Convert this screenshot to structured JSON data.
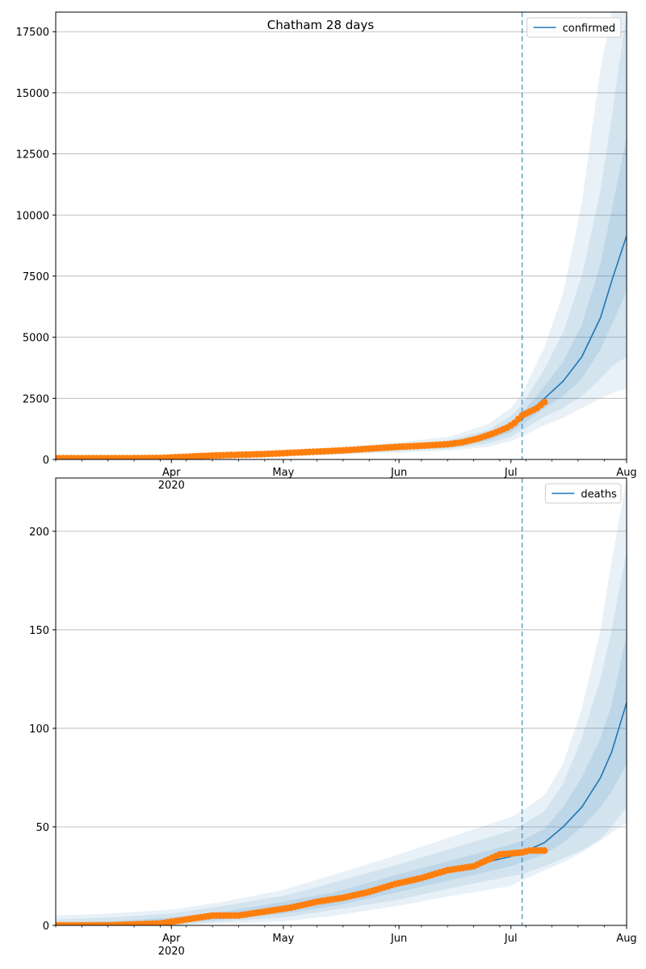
{
  "figure": {
    "title": "Chatham 28 days"
  },
  "chart_data": [
    {
      "type": "line",
      "name": "confirmed",
      "legend": {
        "label": "confirmed",
        "placement": "top-right"
      },
      "grid": {
        "y": true,
        "x": false
      },
      "xlim": [
        "2020-03-01",
        "2020-08-01"
      ],
      "ylim": [
        0,
        18300
      ],
      "y_ticks": [
        0,
        2500,
        5000,
        7500,
        10000,
        12500,
        15000,
        17500
      ],
      "x_ticks": [
        {
          "date": "2020-04-01",
          "label": "Apr",
          "sublabel": "2020"
        },
        {
          "date": "2020-05-01",
          "label": "May",
          "sublabel": ""
        },
        {
          "date": "2020-06-01",
          "label": "Jun",
          "sublabel": ""
        },
        {
          "date": "2020-07-01",
          "label": "Jul",
          "sublabel": ""
        },
        {
          "date": "2020-08-01",
          "label": "Aug",
          "sublabel": ""
        }
      ],
      "forecast_start": "2020-07-04",
      "series_color": "#1f77b4",
      "observed_color": "#ff7f0e",
      "model": {
        "dates": [
          "2020-03-01",
          "2020-03-15",
          "2020-04-01",
          "2020-04-15",
          "2020-05-01",
          "2020-05-15",
          "2020-06-01",
          "2020-06-15",
          "2020-06-25",
          "2020-07-01",
          "2020-07-04",
          "2020-07-10",
          "2020-07-15",
          "2020-07-20",
          "2020-07-25",
          "2020-07-28",
          "2020-08-01"
        ],
        "median": [
          50,
          60,
          90,
          160,
          230,
          320,
          450,
          600,
          900,
          1300,
          1650,
          2500,
          3200,
          4200,
          5800,
          7300,
          9150
        ],
        "band50_low": [
          40,
          50,
          75,
          140,
          200,
          280,
          400,
          530,
          780,
          1120,
          1420,
          2100,
          2600,
          3300,
          4500,
          5500,
          6900
        ],
        "band50_high": [
          60,
          75,
          110,
          185,
          265,
          370,
          520,
          690,
          1040,
          1500,
          1900,
          3000,
          4000,
          5500,
          8000,
          10200,
          13200
        ],
        "band80_low": [
          30,
          40,
          60,
          120,
          170,
          240,
          340,
          450,
          650,
          930,
          1200,
          1750,
          2100,
          2600,
          3300,
          3800,
          4200
        ],
        "band80_high": [
          70,
          90,
          130,
          210,
          300,
          420,
          600,
          800,
          1220,
          1780,
          2250,
          3700,
          5200,
          7500,
          11000,
          14000,
          18300
        ],
        "band95_low": [
          20,
          30,
          50,
          100,
          140,
          200,
          280,
          370,
          520,
          750,
          950,
          1400,
          1700,
          2100,
          2500,
          2700,
          2900
        ],
        "band95_high": [
          80,
          100,
          150,
          240,
          350,
          490,
          700,
          950,
          1450,
          2100,
          2700,
          4600,
          6800,
          10500,
          16000,
          18300,
          18300
        ]
      },
      "observed": {
        "dates": [
          "2020-03-01",
          "2020-03-08",
          "2020-03-15",
          "2020-03-22",
          "2020-03-29",
          "2020-04-05",
          "2020-04-12",
          "2020-04-19",
          "2020-04-26",
          "2020-05-03",
          "2020-05-10",
          "2020-05-17",
          "2020-05-24",
          "2020-05-31",
          "2020-06-07",
          "2020-06-14",
          "2020-06-18",
          "2020-06-22",
          "2020-06-26",
          "2020-06-30",
          "2020-07-02",
          "2020-07-04",
          "2020-07-06",
          "2020-07-08",
          "2020-07-10"
        ],
        "values": [
          50,
          50,
          50,
          55,
          60,
          110,
          160,
          190,
          220,
          270,
          320,
          370,
          440,
          510,
          560,
          620,
          700,
          850,
          1050,
          1300,
          1500,
          1800,
          1950,
          2100,
          2350
        ]
      }
    },
    {
      "type": "line",
      "name": "deaths",
      "legend": {
        "label": "deaths",
        "placement": "top-right"
      },
      "grid": {
        "y": true,
        "x": false
      },
      "xlim": [
        "2020-03-01",
        "2020-08-01"
      ],
      "ylim": [
        0,
        227
      ],
      "y_ticks": [
        0,
        50,
        100,
        150,
        200
      ],
      "x_ticks": [
        {
          "date": "2020-04-01",
          "label": "Apr",
          "sublabel": "2020"
        },
        {
          "date": "2020-05-01",
          "label": "May",
          "sublabel": ""
        },
        {
          "date": "2020-06-01",
          "label": "Jun",
          "sublabel": ""
        },
        {
          "date": "2020-07-01",
          "label": "Jul",
          "sublabel": ""
        },
        {
          "date": "2020-08-01",
          "label": "Aug",
          "sublabel": ""
        }
      ],
      "forecast_start": "2020-07-04",
      "series_color": "#1f77b4",
      "observed_color": "#ff7f0e",
      "model": {
        "dates": [
          "2020-03-01",
          "2020-03-15",
          "2020-04-01",
          "2020-04-15",
          "2020-05-01",
          "2020-05-15",
          "2020-06-01",
          "2020-06-15",
          "2020-07-01",
          "2020-07-04",
          "2020-07-10",
          "2020-07-15",
          "2020-07-20",
          "2020-07-25",
          "2020-07-28",
          "2020-08-01"
        ],
        "median": [
          0,
          1,
          2,
          5,
          9,
          13,
          21,
          28,
          35,
          37,
          42,
          50,
          60,
          75,
          88,
          113
        ],
        "band50_low": [
          0,
          0,
          1,
          3,
          6,
          10,
          17,
          23,
          30,
          32,
          36,
          42,
          50,
          60,
          68,
          82
        ],
        "band50_high": [
          1,
          2,
          4,
          7,
          12,
          17,
          26,
          33,
          41,
          43,
          49,
          60,
          75,
          95,
          112,
          148
        ],
        "band80_low": [
          0,
          0,
          0,
          2,
          4,
          8,
          13,
          19,
          25,
          26,
          30,
          34,
          38,
          44,
          50,
          60
        ],
        "band80_high": [
          3,
          4,
          6,
          10,
          15,
          22,
          31,
          39,
          48,
          51,
          58,
          72,
          95,
          125,
          150,
          190
        ],
        "band95_low": [
          0,
          0,
          0,
          1,
          2,
          5,
          10,
          15,
          20,
          23,
          28,
          32,
          37,
          43,
          47,
          52
        ],
        "band95_high": [
          5,
          6,
          8,
          12,
          18,
          26,
          36,
          45,
          55,
          58,
          66,
          82,
          110,
          150,
          185,
          227
        ]
      },
      "observed": {
        "dates": [
          "2020-03-01",
          "2020-03-15",
          "2020-03-29",
          "2020-04-05",
          "2020-04-12",
          "2020-04-19",
          "2020-04-26",
          "2020-05-03",
          "2020-05-10",
          "2020-05-17",
          "2020-05-24",
          "2020-05-31",
          "2020-06-07",
          "2020-06-14",
          "2020-06-21",
          "2020-06-28",
          "2020-07-04",
          "2020-07-06",
          "2020-07-10"
        ],
        "values": [
          0,
          0,
          1,
          3,
          5,
          5,
          7,
          9,
          12,
          14,
          17,
          21,
          24,
          28,
          30,
          36,
          37,
          38,
          38
        ]
      }
    }
  ]
}
